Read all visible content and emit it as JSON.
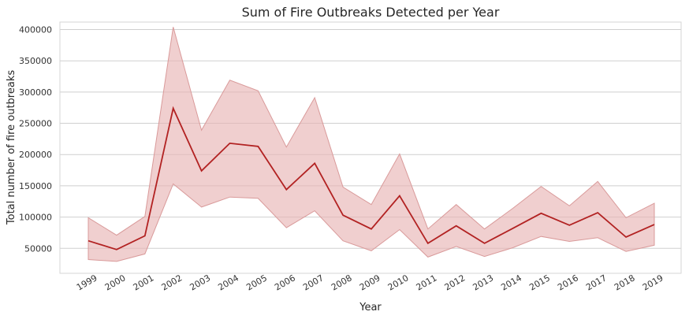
{
  "chart_data": {
    "type": "line",
    "title": "Sum of Fire Outbreaks Detected per Year",
    "xlabel": "Year",
    "ylabel": "Total number of fire outbreaks",
    "x": [
      "1999",
      "2000",
      "2001",
      "2002",
      "2003",
      "2004",
      "2005",
      "2006",
      "2007",
      "2008",
      "2009",
      "2010",
      "2011",
      "2012",
      "2013",
      "2014",
      "2015",
      "2016",
      "2017",
      "2018",
      "2019"
    ],
    "series": [
      {
        "values": [
          62000,
          48000,
          70000,
          274000,
          174000,
          218000,
          213000,
          144000,
          186000,
          103000,
          81000,
          134000,
          58000,
          86000,
          58000,
          82000,
          106000,
          87000,
          107000,
          68000,
          88000
        ],
        "ci_upper": [
          99000,
          71000,
          101000,
          404000,
          239000,
          319000,
          302000,
          212000,
          291000,
          148000,
          120000,
          201000,
          81000,
          120000,
          81000,
          114000,
          149000,
          118000,
          157000,
          99000,
          122000
        ],
        "ci_lower": [
          32000,
          29000,
          41000,
          153000,
          116000,
          132000,
          130000,
          83000,
          110000,
          62000,
          46000,
          80000,
          36000,
          53000,
          37000,
          51000,
          69000,
          61000,
          67000,
          45000,
          55000
        ]
      }
    ],
    "yticks": [
      "50000",
      "100000",
      "150000",
      "200000",
      "250000",
      "300000",
      "350000",
      "400000"
    ],
    "ylim": [
      10000,
      412000
    ],
    "grid": "horizontal",
    "line_color": "#b22222",
    "band_color": "#e8b6b6"
  }
}
